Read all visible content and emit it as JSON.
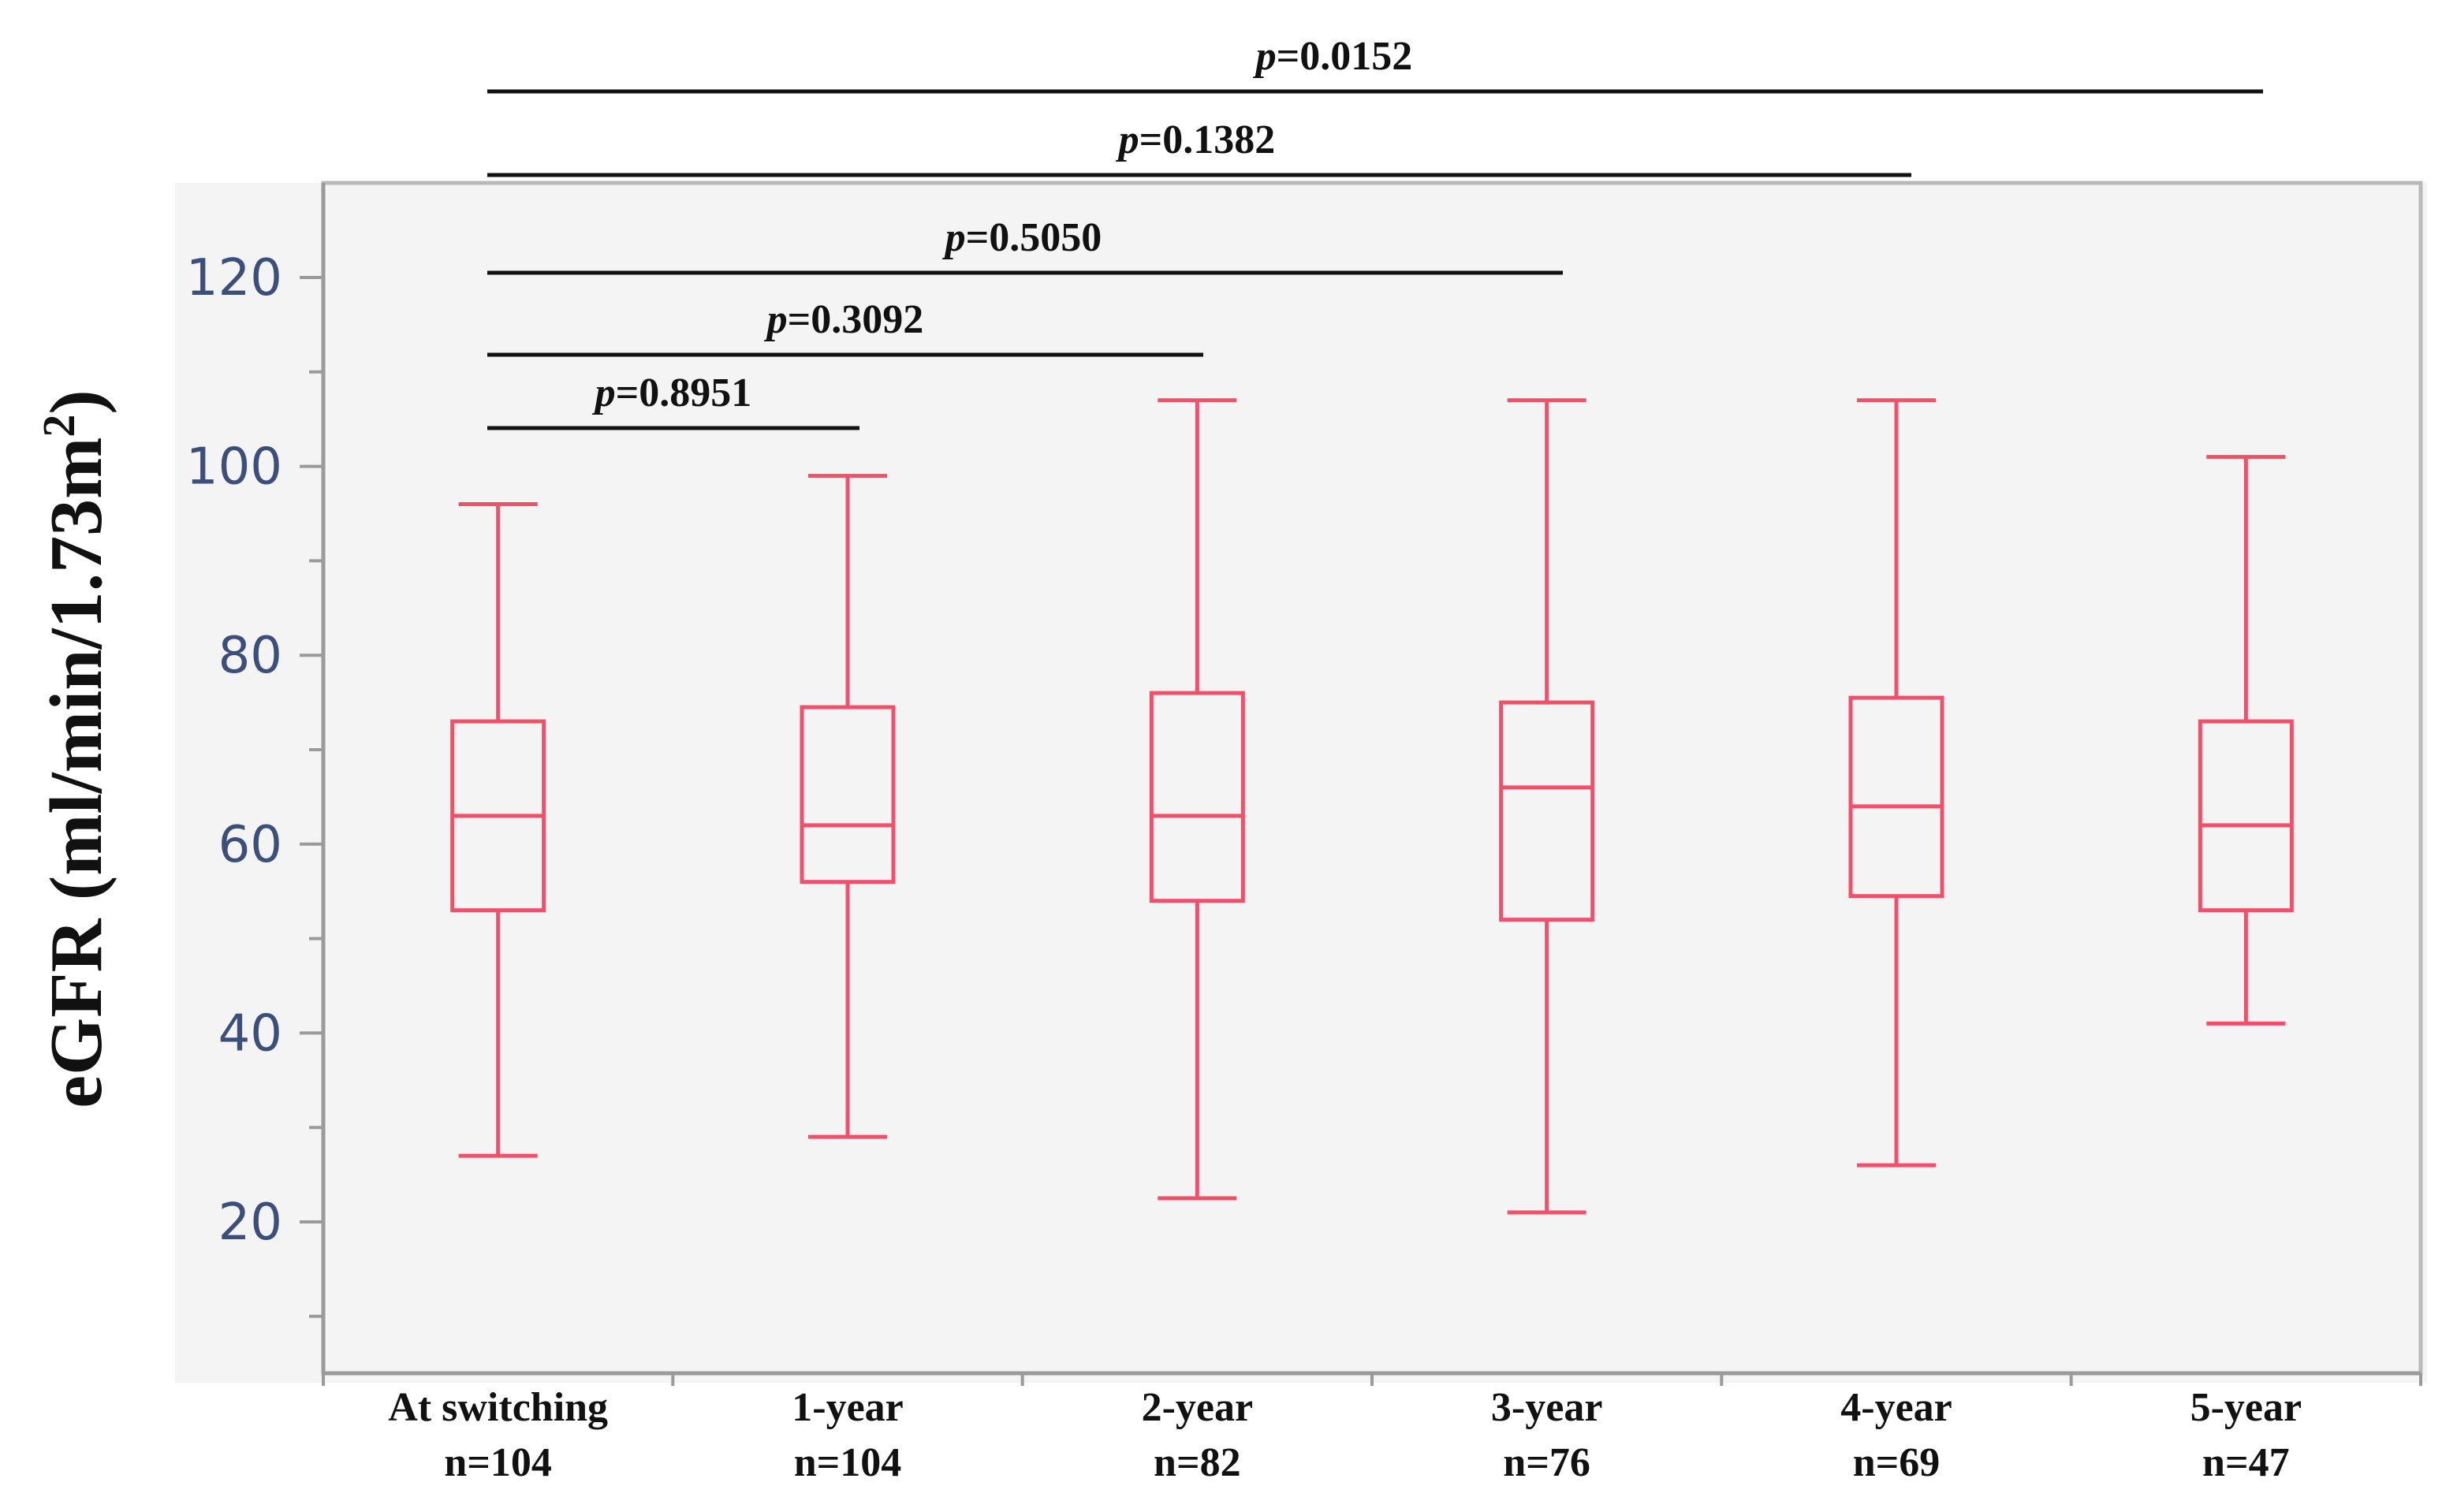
{
  "chart_data": {
    "type": "box",
    "ylabel": "eGFR (ml/min/1.73m",
    "ylabel_sup": "2",
    "ylabel_close": ")",
    "ylim": [
      10,
      127
    ],
    "yticks": [
      20,
      40,
      60,
      80,
      100,
      120
    ],
    "grid": false,
    "box_color": "#f0506a",
    "categories": [
      {
        "name": "At switching",
        "n": "n=104",
        "min": 27,
        "q1": 53,
        "median": 63,
        "q3": 73,
        "max": 96
      },
      {
        "name": "1-year",
        "n": "n=104",
        "min": 29,
        "q1": 56,
        "median": 62,
        "q3": 74.5,
        "max": 99
      },
      {
        "name": "2-year",
        "n": "n=82",
        "min": 22.5,
        "q1": 54,
        "median": 63,
        "q3": 76,
        "max": 107
      },
      {
        "name": "3-year",
        "n": "n=76",
        "min": 21,
        "q1": 52,
        "median": 66,
        "q3": 75,
        "max": 107
      },
      {
        "name": "4-year",
        "n": "n=69",
        "min": 26,
        "q1": 54.5,
        "median": 64,
        "q3": 75.5,
        "max": 107
      },
      {
        "name": "5-year",
        "n": "n=47",
        "min": 41,
        "q1": 53,
        "median": 62,
        "q3": 73,
        "max": 101
      }
    ],
    "comparisons": [
      {
        "p_prefix": "p",
        "p_value": "=0.8951",
        "from": 0,
        "to": 1
      },
      {
        "p_prefix": "p",
        "p_value": "=0.3092",
        "from": 0,
        "to": 2
      },
      {
        "p_prefix": "p",
        "p_value": "=0.5050",
        "from": 0,
        "to": 3
      },
      {
        "p_prefix": "p",
        "p_value": "=0.1382",
        "from": 0,
        "to": 4
      },
      {
        "p_prefix": "p",
        "p_value": "=0.0152",
        "from": 0,
        "to": 5
      }
    ]
  }
}
